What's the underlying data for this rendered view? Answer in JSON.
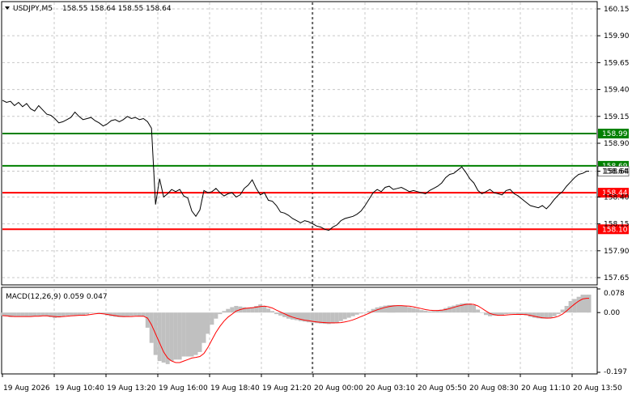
{
  "header": {
    "symbol_label": "USDJPY,M5",
    "ohlc": "158.55 158.64 158.55 158.64",
    "menu_icon": "triangle-down-icon"
  },
  "price_panel": {
    "y_ticks": [
      "160.15",
      "159.90",
      "159.65",
      "159.40",
      "159.15",
      "158.90",
      "158.64",
      "158.40",
      "158.15",
      "157.90",
      "157.65"
    ],
    "levels": [
      {
        "label": "158.99",
        "value": 158.99,
        "color": "#008000"
      },
      {
        "label": "158.69",
        "value": 158.69,
        "color": "#008000"
      },
      {
        "label": "158.44",
        "value": 158.44,
        "color": "#ff0000"
      },
      {
        "label": "158.10",
        "value": 158.1,
        "color": "#ff0000"
      }
    ],
    "current_price_label": "158.64"
  },
  "macd_panel": {
    "title": "MACD(12,26,9) 0.059 0.047",
    "y_ticks": [
      "0.078",
      "0.00",
      "-0.197"
    ]
  },
  "x_axis": {
    "labels": [
      "19 Aug 2026",
      "19 Aug 10:40",
      "19 Aug 13:20",
      "19 Aug 16:00",
      "19 Aug 18:40",
      "19 Aug 21:20",
      "20 Aug 00:00",
      "20 Aug 03:10",
      "20 Aug 05:50",
      "20 Aug 08:30",
      "20 Aug 11:10",
      "20 Aug 13:50"
    ]
  },
  "colors": {
    "price_line": "#000000",
    "macd_histogram": "#c0c0c0",
    "macd_signal": "#ff0000",
    "grid": "#c8c8c8"
  },
  "chart_data": [
    {
      "type": "line",
      "name": "USDJPY,M5",
      "ylim": [
        157.59,
        160.21
      ],
      "x": [
        0,
        5,
        10,
        15,
        20,
        25,
        30,
        35,
        40,
        45,
        50,
        55,
        60,
        65,
        70,
        75,
        80,
        85,
        90,
        95,
        100,
        105,
        110,
        115,
        120,
        125,
        130,
        135,
        140,
        145,
        150,
        155,
        160,
        165,
        170,
        175,
        180,
        185,
        190,
        195,
        200,
        205,
        210,
        215,
        220,
        225,
        230,
        235,
        240,
        245,
        250,
        255,
        260,
        265,
        270,
        275,
        280,
        285,
        290,
        295,
        300,
        305,
        310,
        315,
        320,
        325,
        330,
        335,
        340,
        345,
        350,
        355,
        360,
        365,
        370,
        375,
        380,
        385,
        390,
        395,
        400,
        405,
        410,
        415,
        420,
        425,
        430,
        435,
        440,
        445,
        450,
        455,
        460,
        465,
        470,
        475,
        480,
        485,
        490,
        495,
        500,
        505,
        510,
        515,
        520,
        525,
        530,
        535,
        540,
        545,
        550,
        555,
        560,
        565,
        570,
        575,
        580,
        585,
        590,
        595,
        600,
        605,
        610,
        615,
        620,
        625,
        630,
        635,
        640,
        645,
        650,
        655,
        660,
        665,
        670,
        675,
        680,
        685,
        690,
        695,
        700,
        705,
        710,
        715,
        720,
        725,
        728
      ],
      "values": [
        159.3,
        159.28,
        159.29,
        159.25,
        159.28,
        159.24,
        159.27,
        159.22,
        159.2,
        159.25,
        159.21,
        159.17,
        159.16,
        159.13,
        159.09,
        159.1,
        159.12,
        159.14,
        159.19,
        159.15,
        159.12,
        159.13,
        159.14,
        159.11,
        159.09,
        159.06,
        159.08,
        159.11,
        159.12,
        159.1,
        159.12,
        159.15,
        159.13,
        159.14,
        159.12,
        159.13,
        159.1,
        159.04,
        158.33,
        158.57,
        158.4,
        158.43,
        158.47,
        158.45,
        158.47,
        158.41,
        158.39,
        158.27,
        158.22,
        158.28,
        158.46,
        158.44,
        158.45,
        158.48,
        158.44,
        158.41,
        158.43,
        158.44,
        158.4,
        158.42,
        158.48,
        158.51,
        158.56,
        158.48,
        158.42,
        158.44,
        158.37,
        158.36,
        158.32,
        158.26,
        158.25,
        158.23,
        158.2,
        158.18,
        158.16,
        158.18,
        158.17,
        158.15,
        158.13,
        158.12,
        158.1,
        158.09,
        158.12,
        158.14,
        158.18,
        158.2,
        158.21,
        158.22,
        158.24,
        158.27,
        158.32,
        158.38,
        158.44,
        158.47,
        158.45,
        158.49,
        158.5,
        158.47,
        158.48,
        158.49,
        158.47,
        158.45,
        158.46,
        158.45,
        158.44,
        158.43,
        158.46,
        158.48,
        158.5,
        158.53,
        158.58,
        158.61,
        158.62,
        158.65,
        158.68,
        158.63,
        158.57,
        158.53,
        158.46,
        158.43,
        158.45,
        158.47,
        158.44,
        158.43,
        158.42,
        158.46,
        158.47,
        158.43,
        158.41,
        158.38,
        158.35,
        158.32,
        158.31,
        158.3,
        158.32,
        158.29,
        158.33,
        158.38,
        158.42,
        158.45,
        158.5,
        158.54,
        158.58,
        158.61,
        158.62,
        158.64,
        158.64
      ]
    },
    {
      "type": "bar",
      "name": "MACD(12,26,9)",
      "ylim": [
        -0.197,
        0.078
      ],
      "x": [
        0,
        5,
        10,
        15,
        20,
        25,
        30,
        35,
        40,
        45,
        50,
        55,
        60,
        65,
        70,
        75,
        80,
        85,
        90,
        95,
        100,
        105,
        110,
        115,
        120,
        125,
        130,
        135,
        140,
        145,
        150,
        155,
        160,
        165,
        170,
        175,
        180,
        185,
        190,
        195,
        200,
        205,
        210,
        215,
        220,
        225,
        230,
        235,
        240,
        245,
        250,
        255,
        260,
        265,
        270,
        275,
        280,
        285,
        290,
        295,
        300,
        305,
        310,
        315,
        320,
        325,
        330,
        335,
        340,
        345,
        350,
        355,
        360,
        365,
        370,
        375,
        380,
        385,
        390,
        395,
        400,
        405,
        410,
        415,
        420,
        425,
        430,
        435,
        440,
        445,
        450,
        455,
        460,
        465,
        470,
        475,
        480,
        485,
        490,
        495,
        500,
        505,
        510,
        515,
        520,
        525,
        530,
        535,
        540,
        545,
        550,
        555,
        560,
        565,
        570,
        575,
        580,
        585,
        590,
        595,
        600,
        605,
        610,
        615,
        620,
        625,
        630,
        635,
        640,
        645,
        650,
        655,
        660,
        665,
        670,
        675,
        680,
        685,
        690,
        695,
        700,
        705,
        710,
        715,
        720,
        725,
        728
      ],
      "values": [
        -0.01,
        -0.012,
        -0.015,
        -0.014,
        -0.013,
        -0.012,
        -0.013,
        -0.012,
        -0.012,
        -0.011,
        -0.01,
        -0.012,
        -0.015,
        -0.018,
        -0.016,
        -0.012,
        -0.01,
        -0.009,
        -0.009,
        -0.009,
        -0.009,
        -0.006,
        -0.002,
        -0.001,
        -0.002,
        -0.005,
        -0.009,
        -0.012,
        -0.014,
        -0.015,
        -0.015,
        -0.014,
        -0.011,
        -0.01,
        -0.011,
        -0.013,
        -0.05,
        -0.1,
        -0.14,
        -0.16,
        -0.165,
        -0.17,
        -0.16,
        -0.155,
        -0.155,
        -0.145,
        -0.145,
        -0.145,
        -0.14,
        -0.13,
        -0.1,
        -0.07,
        -0.04,
        -0.02,
        -0.005,
        0.005,
        0.012,
        0.018,
        0.022,
        0.02,
        0.018,
        0.016,
        0.018,
        0.022,
        0.027,
        0.022,
        0.013,
        0.005,
        -0.005,
        -0.01,
        -0.015,
        -0.02,
        -0.023,
        -0.025,
        -0.028,
        -0.03,
        -0.032,
        -0.033,
        -0.035,
        -0.036,
        -0.037,
        -0.038,
        -0.036,
        -0.033,
        -0.028,
        -0.022,
        -0.017,
        -0.012,
        -0.007,
        -0.003,
        0.0,
        0.005,
        0.012,
        0.017,
        0.02,
        0.023,
        0.025,
        0.025,
        0.024,
        0.023,
        0.022,
        0.018,
        0.015,
        0.012,
        0.008,
        0.006,
        0.004,
        0.005,
        0.007,
        0.01,
        0.015,
        0.02,
        0.023,
        0.027,
        0.03,
        0.031,
        0.03,
        0.025,
        0.01,
        0.0,
        -0.008,
        -0.012,
        -0.01,
        -0.009,
        -0.008,
        -0.005,
        -0.004,
        -0.004,
        -0.006,
        -0.006,
        -0.009,
        -0.014,
        -0.017,
        -0.019,
        -0.02,
        -0.02,
        -0.018,
        -0.012,
        -0.005,
        0.01,
        0.022,
        0.038,
        0.045,
        0.052,
        0.059,
        0.059,
        0.059
      ],
      "signal": [
        -0.01,
        -0.011,
        -0.012,
        -0.013,
        -0.013,
        -0.013,
        -0.013,
        -0.013,
        -0.012,
        -0.012,
        -0.011,
        -0.011,
        -0.012,
        -0.013,
        -0.014,
        -0.013,
        -0.012,
        -0.011,
        -0.01,
        -0.009,
        -0.009,
        -0.008,
        -0.006,
        -0.004,
        -0.003,
        -0.004,
        -0.006,
        -0.008,
        -0.01,
        -0.012,
        -0.013,
        -0.013,
        -0.013,
        -0.012,
        -0.012,
        -0.012,
        -0.018,
        -0.04,
        -0.07,
        -0.1,
        -0.13,
        -0.15,
        -0.16,
        -0.165,
        -0.165,
        -0.16,
        -0.155,
        -0.15,
        -0.148,
        -0.145,
        -0.135,
        -0.115,
        -0.09,
        -0.065,
        -0.045,
        -0.028,
        -0.015,
        -0.005,
        0.005,
        0.01,
        0.013,
        0.015,
        0.016,
        0.018,
        0.02,
        0.021,
        0.019,
        0.015,
        0.008,
        0.002,
        -0.004,
        -0.01,
        -0.015,
        -0.019,
        -0.022,
        -0.025,
        -0.027,
        -0.029,
        -0.031,
        -0.032,
        -0.033,
        -0.034,
        -0.034,
        -0.034,
        -0.033,
        -0.031,
        -0.028,
        -0.024,
        -0.019,
        -0.013,
        -0.008,
        -0.002,
        0.004,
        0.009,
        0.013,
        0.017,
        0.02,
        0.022,
        0.023,
        0.023,
        0.022,
        0.021,
        0.019,
        0.016,
        0.013,
        0.01,
        0.008,
        0.007,
        0.007,
        0.008,
        0.01,
        0.013,
        0.017,
        0.021,
        0.024,
        0.027,
        0.028,
        0.027,
        0.022,
        0.014,
        0.005,
        -0.003,
        -0.007,
        -0.009,
        -0.009,
        -0.008,
        -0.007,
        -0.006,
        -0.006,
        -0.006,
        -0.007,
        -0.009,
        -0.012,
        -0.015,
        -0.017,
        -0.018,
        -0.018,
        -0.016,
        -0.012,
        -0.005,
        0.005,
        0.017,
        0.028,
        0.038,
        0.045,
        0.047,
        0.047
      ]
    }
  ]
}
